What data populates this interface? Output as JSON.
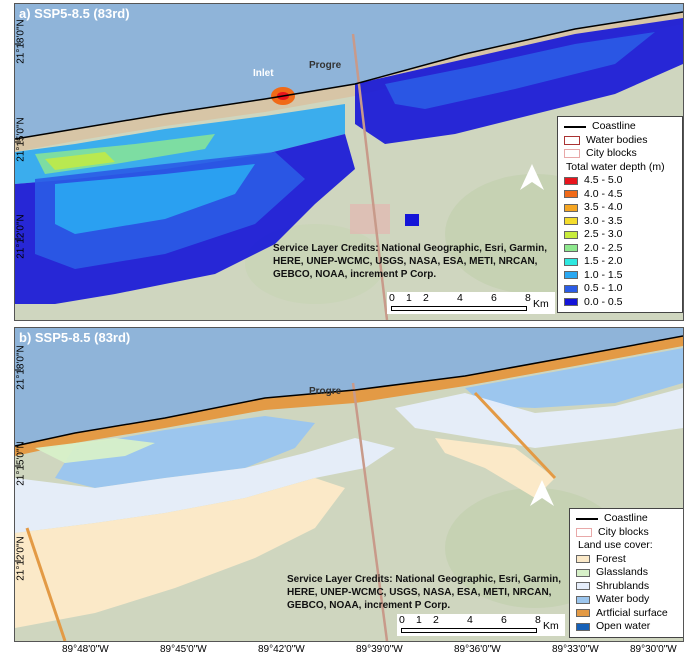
{
  "panel_a": {
    "title": "a) SSP5-8.5 (83rd)",
    "labels": {
      "inlet": "Inlet",
      "progreso": "Progre"
    },
    "credits": [
      "Service Layer Credits: National Geographic, Esri, Garmin,",
      "HERE, UNEP-WCMC, USGS, NASA, ESA, METI, NRCAN,",
      "GEBCO, NOAA, increment P Corp."
    ],
    "scale": {
      "ticks": [
        "0",
        "1",
        "2",
        "4",
        "6",
        "8"
      ],
      "unit": "Km"
    },
    "legend": {
      "coastline": "Coastline",
      "water_bodies": "Water bodies",
      "city_blocks": "City blocks",
      "title": "Total water depth (m)",
      "classes": [
        {
          "label": "4.5 - 5.0",
          "color": "#e8141c"
        },
        {
          "label": "4.0 - 4.5",
          "color": "#f06a18"
        },
        {
          "label": "3.5 - 4.0",
          "color": "#f5a623"
        },
        {
          "label": "3.0 - 3.5",
          "color": "#f4dc2c"
        },
        {
          "label": "2.5 - 3.0",
          "color": "#c8ec3c"
        },
        {
          "label": "2.0 - 2.5",
          "color": "#8ee88e"
        },
        {
          "label": "1.5 - 2.0",
          "color": "#2ee8e0"
        },
        {
          "label": "1.0 - 1.5",
          "color": "#2aa8f2"
        },
        {
          "label": "0.5 - 1.0",
          "color": "#2b5ce6"
        },
        {
          "label": "0.0 - 0.5",
          "color": "#1414d8"
        }
      ]
    },
    "y_labels": [
      "21°18'0\"N",
      "21°15'0\"N",
      "21°12'0\"N"
    ]
  },
  "panel_b": {
    "title": "b) SSP5-8.5 (83rd)",
    "labels": {
      "progreso": "Progre"
    },
    "credits": [
      "Service Layer Credits: National Geographic, Esri, Garmin,",
      "HERE, UNEP-WCMC, USGS, NASA, ESA, METI, NRCAN,",
      "GEBCO, NOAA, increment P Corp."
    ],
    "scale": {
      "ticks": [
        "0",
        "1",
        "2",
        "4",
        "6",
        "8"
      ],
      "unit": "Km"
    },
    "legend": {
      "coastline": "Coastline",
      "city_blocks": "City blocks",
      "title": "Land use cover:",
      "classes": [
        {
          "label": "Forest",
          "color": "#fbe9c8"
        },
        {
          "label": "Glasslands",
          "color": "#d7f0c8"
        },
        {
          "label": "Shrublands",
          "color": "#e6eefb"
        },
        {
          "label": "Water body",
          "color": "#9cc6ee"
        },
        {
          "label": "Artficial surface",
          "color": "#e39a45"
        },
        {
          "label": "Open water",
          "color": "#1560b8"
        }
      ]
    },
    "y_labels": [
      "21°18'0\"N",
      "21°15'0\"N",
      "21°12'0\"N"
    ]
  },
  "x_labels": [
    "89°48'0\"W",
    "89°45'0\"W",
    "89°42'0\"W",
    "89°39'0\"W",
    "89°36'0\"W",
    "89°33'0\"W",
    "89°30'0\"W"
  ],
  "colors": {
    "sea": "#8fb4d9",
    "land": "#cfd6bf",
    "coastline": "#000000"
  }
}
